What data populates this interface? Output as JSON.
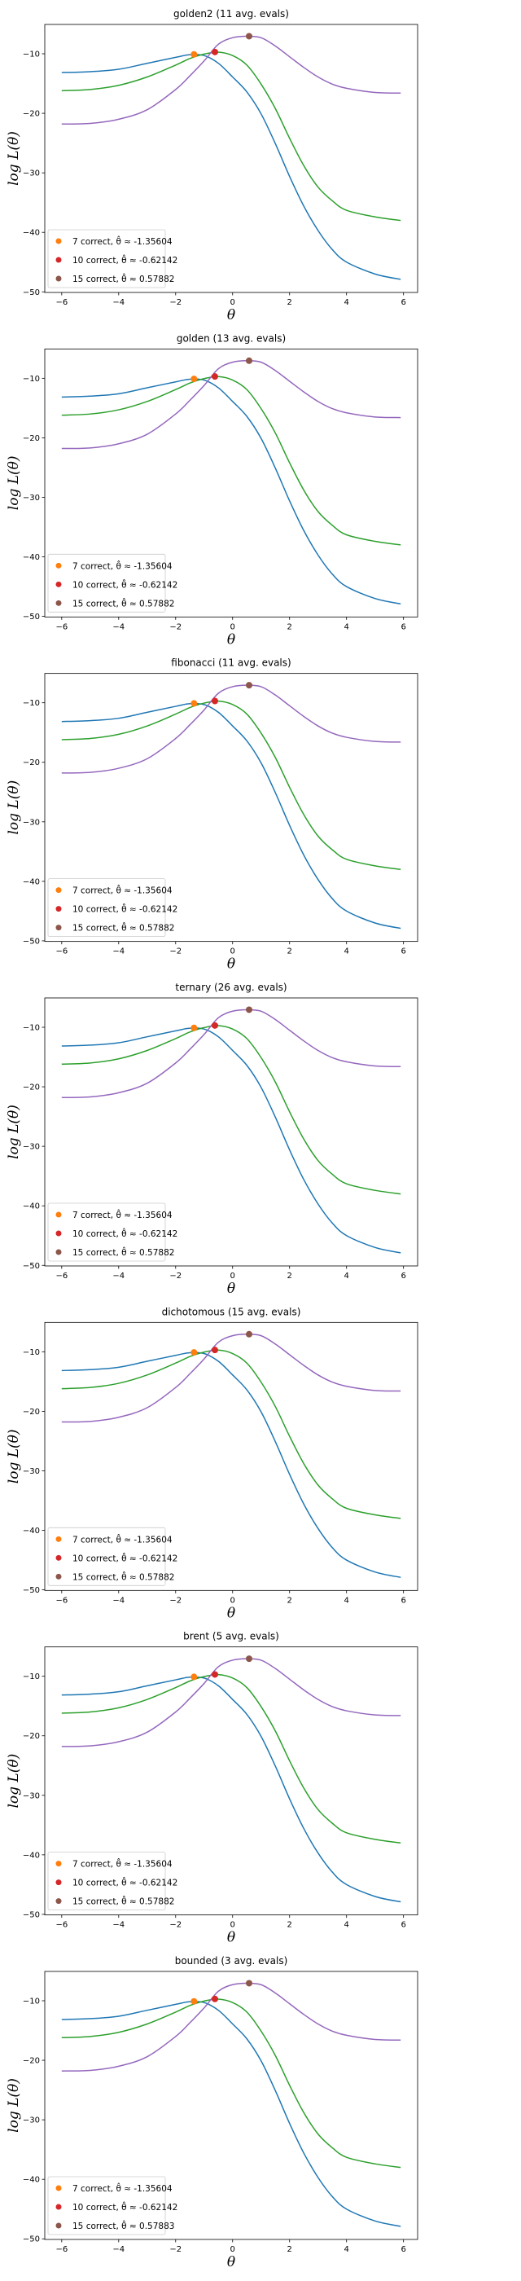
{
  "chart_data": [
    {
      "type": "line",
      "title": "golden2 (11 avg. evals)",
      "xlabel": "θ",
      "ylabel": "log L(θ)",
      "xlim": [
        -6.6,
        6.5
      ],
      "ylim": [
        -50.1,
        -5.1
      ],
      "xticks": [
        "−6",
        "−4",
        "−2",
        "0",
        "2",
        "4",
        "6"
      ],
      "yticks": [
        "−10",
        "−20",
        "−30",
        "−40",
        "−50"
      ],
      "grid": false,
      "legend": "lower-left",
      "legend_entries": [
        "7 correct, θ̂ ≈ -1.35604",
        "10 correct, θ̂ ≈ -0.62142",
        "15 correct, θ̂ ≈ 0.57882"
      ],
      "points": [
        {
          "x": -1.35604,
          "y": -10.1,
          "color": "#ff7f0e"
        },
        {
          "x": -0.62142,
          "y": -9.7,
          "color": "#d62728"
        },
        {
          "x": 0.57882,
          "y": -7.05,
          "color": "#8c564b"
        }
      ]
    },
    {
      "type": "line",
      "title": "golden (13 avg. evals)",
      "xlabel": "θ",
      "ylabel": "log L(θ)",
      "xlim": [
        -6.6,
        6.5
      ],
      "ylim": [
        -50.1,
        -5.1
      ],
      "xticks": [
        "−6",
        "−4",
        "−2",
        "0",
        "2",
        "4",
        "6"
      ],
      "yticks": [
        "−10",
        "−20",
        "−30",
        "−40",
        "−50"
      ],
      "grid": false,
      "legend": "lower-left",
      "legend_entries": [
        "7 correct, θ̂ ≈ -1.35604",
        "10 correct, θ̂ ≈ -0.62142",
        "15 correct, θ̂ ≈ 0.57882"
      ],
      "points": [
        {
          "x": -1.35604,
          "y": -10.1,
          "color": "#ff7f0e"
        },
        {
          "x": -0.62142,
          "y": -9.7,
          "color": "#d62728"
        },
        {
          "x": 0.57882,
          "y": -7.05,
          "color": "#8c564b"
        }
      ]
    },
    {
      "type": "line",
      "title": "fibonacci (11 avg. evals)",
      "xlabel": "θ",
      "ylabel": "log L(θ)",
      "xlim": [
        -6.6,
        6.5
      ],
      "ylim": [
        -50.1,
        -5.1
      ],
      "xticks": [
        "−6",
        "−4",
        "−2",
        "0",
        "2",
        "4",
        "6"
      ],
      "yticks": [
        "−10",
        "−20",
        "−30",
        "−40",
        "−50"
      ],
      "grid": false,
      "legend": "lower-left",
      "legend_entries": [
        "7 correct, θ̂ ≈ -1.35604",
        "10 correct, θ̂ ≈ -0.62142",
        "15 correct, θ̂ ≈ 0.57882"
      ],
      "points": [
        {
          "x": -1.35604,
          "y": -10.1,
          "color": "#ff7f0e"
        },
        {
          "x": -0.62142,
          "y": -9.7,
          "color": "#d62728"
        },
        {
          "x": 0.57882,
          "y": -7.05,
          "color": "#8c564b"
        }
      ]
    },
    {
      "type": "line",
      "title": "ternary (26 avg. evals)",
      "xlabel": "θ",
      "ylabel": "log L(θ)",
      "xlim": [
        -6.6,
        6.5
      ],
      "ylim": [
        -50.1,
        -5.1
      ],
      "xticks": [
        "−6",
        "−4",
        "−2",
        "0",
        "2",
        "4",
        "6"
      ],
      "yticks": [
        "−10",
        "−20",
        "−30",
        "−40",
        "−50"
      ],
      "grid": false,
      "legend": "lower-left",
      "legend_entries": [
        "7 correct, θ̂ ≈ -1.35604",
        "10 correct, θ̂ ≈ -0.62142",
        "15 correct, θ̂ ≈ 0.57882"
      ],
      "points": [
        {
          "x": -1.35604,
          "y": -10.1,
          "color": "#ff7f0e"
        },
        {
          "x": -0.62142,
          "y": -9.7,
          "color": "#d62728"
        },
        {
          "x": 0.57882,
          "y": -7.05,
          "color": "#8c564b"
        }
      ]
    },
    {
      "type": "line",
      "title": "dichotomous (15 avg. evals)",
      "xlabel": "θ",
      "ylabel": "log L(θ)",
      "xlim": [
        -6.6,
        6.5
      ],
      "ylim": [
        -50.1,
        -5.1
      ],
      "xticks": [
        "−6",
        "−4",
        "−2",
        "0",
        "2",
        "4",
        "6"
      ],
      "yticks": [
        "−10",
        "−20",
        "−30",
        "−40",
        "−50"
      ],
      "grid": false,
      "legend": "lower-left",
      "legend_entries": [
        "7 correct, θ̂ ≈ -1.35604",
        "10 correct, θ̂ ≈ -0.62142",
        "15 correct, θ̂ ≈ 0.57882"
      ],
      "points": [
        {
          "x": -1.35604,
          "y": -10.1,
          "color": "#ff7f0e"
        },
        {
          "x": -0.62142,
          "y": -9.7,
          "color": "#d62728"
        },
        {
          "x": 0.57882,
          "y": -7.05,
          "color": "#8c564b"
        }
      ]
    },
    {
      "type": "line",
      "title": "brent (5 avg. evals)",
      "xlabel": "θ",
      "ylabel": "log L(θ)",
      "xlim": [
        -6.6,
        6.5
      ],
      "ylim": [
        -50.1,
        -5.1
      ],
      "xticks": [
        "−6",
        "−4",
        "−2",
        "0",
        "2",
        "4",
        "6"
      ],
      "yticks": [
        "−10",
        "−20",
        "−30",
        "−40",
        "−50"
      ],
      "grid": false,
      "legend": "lower-left",
      "legend_entries": [
        "7 correct, θ̂ ≈ -1.35604",
        "10 correct, θ̂ ≈ -0.62142",
        "15 correct, θ̂ ≈ 0.57882"
      ],
      "points": [
        {
          "x": -1.35604,
          "y": -10.1,
          "color": "#ff7f0e"
        },
        {
          "x": -0.62142,
          "y": -9.7,
          "color": "#d62728"
        },
        {
          "x": 0.57882,
          "y": -7.05,
          "color": "#8c564b"
        }
      ]
    },
    {
      "type": "line",
      "title": "bounded (3 avg. evals)",
      "xlabel": "θ",
      "ylabel": "log L(θ)",
      "xlim": [
        -6.6,
        6.5
      ],
      "ylim": [
        -50.1,
        -5.1
      ],
      "xticks": [
        "−6",
        "−4",
        "−2",
        "0",
        "2",
        "4",
        "6"
      ],
      "yticks": [
        "−10",
        "−20",
        "−30",
        "−40",
        "−50"
      ],
      "grid": false,
      "legend": "lower-left",
      "legend_entries": [
        "7 correct, θ̂ ≈ -1.35604",
        "10 correct, θ̂ ≈ -0.62142",
        "15 correct, θ̂ ≈ 0.57883"
      ],
      "points": [
        {
          "x": -1.35604,
          "y": -10.1,
          "color": "#ff7f0e"
        },
        {
          "x": -0.62142,
          "y": -9.7,
          "color": "#d62728"
        },
        {
          "x": 0.57883,
          "y": -7.05,
          "color": "#8c564b"
        }
      ]
    }
  ],
  "curves": {
    "x": [
      -6,
      -5,
      -4,
      -3,
      -2,
      -1.5,
      -1,
      -0.5,
      0,
      0.5,
      1,
      1.5,
      2,
      2.5,
      3,
      3.5,
      4,
      5,
      5.9
    ],
    "series": [
      {
        "color": "#1f77b4",
        "y": [
          -13.15,
          -13.0,
          -12.6,
          -11.6,
          -10.6,
          -10.15,
          -10.3,
          -11.6,
          -13.9,
          -16.4,
          -20.1,
          -25.1,
          -30.6,
          -35.6,
          -39.7,
          -42.9,
          -45.0,
          -47.0,
          -47.9
        ]
      },
      {
        "color": "#2ca02c",
        "y": [
          -16.2,
          -16.0,
          -15.3,
          -13.9,
          -11.9,
          -10.8,
          -10.05,
          -9.72,
          -10.3,
          -11.9,
          -15.1,
          -19.2,
          -24.2,
          -28.8,
          -32.4,
          -34.7,
          -36.3,
          -37.4,
          -38.0
        ]
      },
      {
        "color": "#9467bd",
        "y": [
          -21.8,
          -21.7,
          -21.0,
          -19.4,
          -16.0,
          -13.7,
          -11.2,
          -8.4,
          -7.3,
          -7.05,
          -7.3,
          -8.7,
          -10.5,
          -12.3,
          -13.9,
          -15.1,
          -15.8,
          -16.5,
          -16.6
        ]
      }
    ]
  }
}
